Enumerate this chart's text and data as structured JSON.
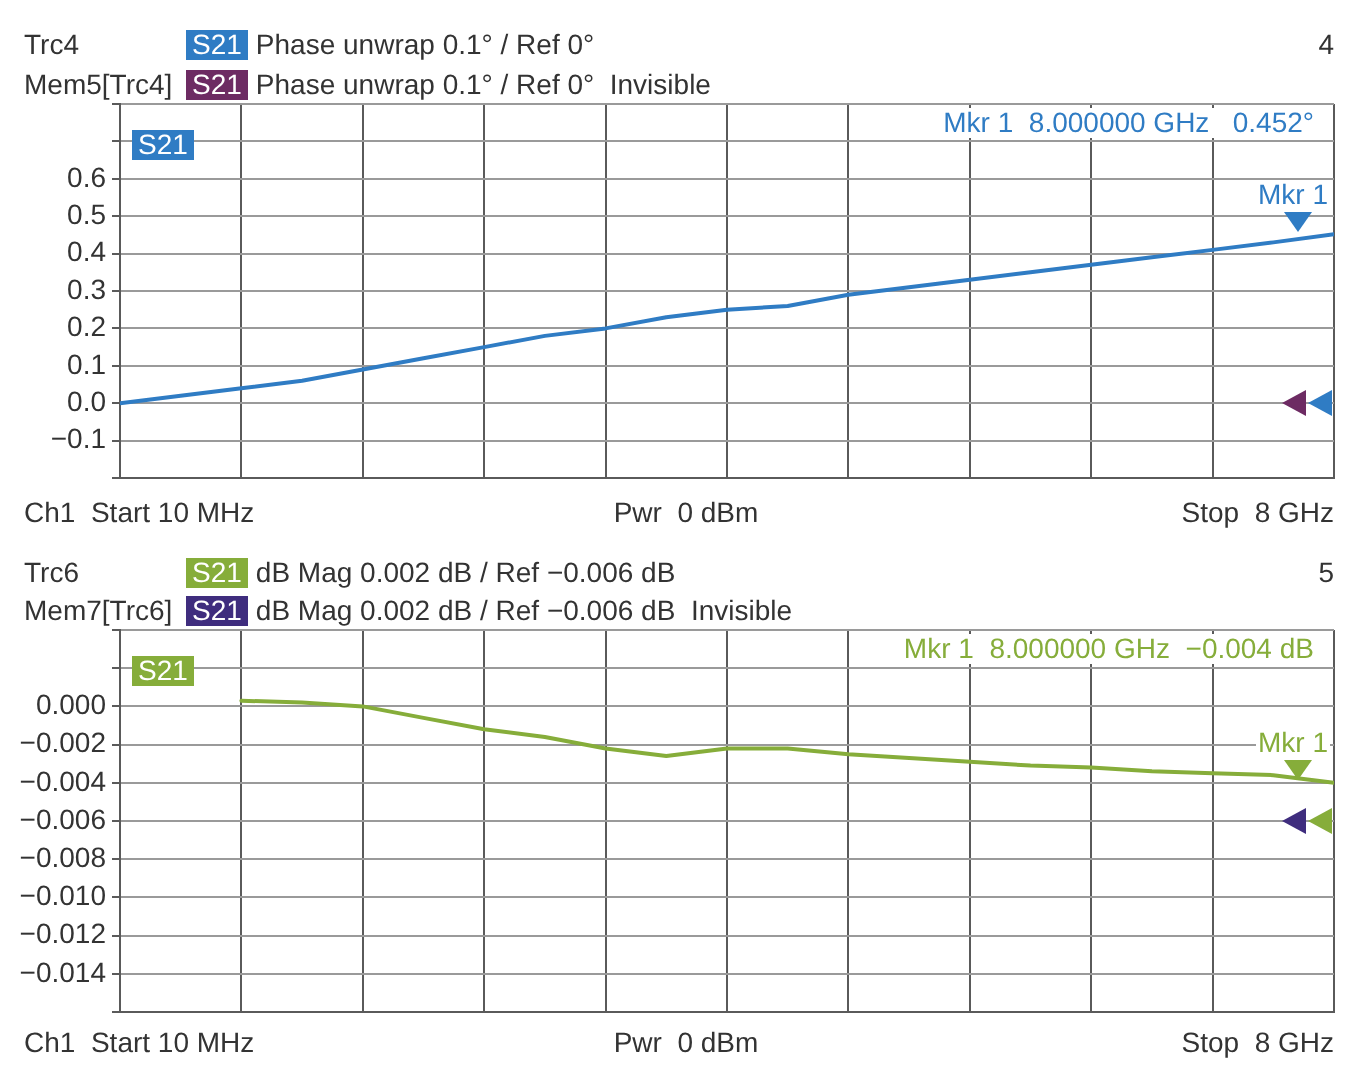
{
  "chart_data": [
    {
      "type": "line",
      "categories": [
        null,
        null,
        null,
        null,
        null,
        null,
        null,
        null,
        null,
        null,
        null,
        null,
        null,
        null,
        null,
        null,
        null,
        null,
        null,
        null,
        null
      ],
      "series": [
        {
          "name": "S21",
          "color": "#2f7cc4",
          "values": [
            0,
            0.02,
            0.04,
            0.06,
            0.09,
            0.12,
            0.15,
            0.18,
            0.2,
            0.23,
            0.25,
            0.26,
            0.29,
            0.31,
            0.33,
            0.35,
            0.37,
            0.39,
            0.41,
            0.43,
            0.452
          ]
        }
      ],
      "ylim": [
        -0.2,
        0.8
      ],
      "yticks": [
        {
          "value": -0.2,
          "label": null
        },
        {
          "value": -0.1,
          "label": "−0.1"
        },
        {
          "value": 0,
          "label": "0.0"
        },
        0.1,
        0.2,
        0.3,
        0.4,
        0.5,
        0.6,
        {
          "value": 0.7,
          "label": null
        },
        {
          "value": 0.8,
          "label": null
        }
      ],
      "grid": true,
      "legend": "top left",
      "tick_labels": "y",
      "annotations": [
        "Trc4",
        "S21",
        "Phase unwrap 0.1° / Ref 0°",
        "Mem5[Trc4]",
        "S21",
        "Phase unwrap 0.1° / Ref 0°  Invisible",
        "4",
        "Mkr 1  8.000000 GHz   0.452°",
        "Mkr 1",
        "Ch1  Start 10 MHz",
        "Pwr  0 dBm",
        "Stop  8 GHz"
      ]
    },
    {
      "type": "line",
      "categories": [
        null,
        null,
        null,
        null,
        null,
        null,
        null,
        null,
        null,
        null,
        null,
        null,
        null,
        null,
        null,
        null,
        null,
        null,
        null,
        null,
        null
      ],
      "series": [
        {
          "name": "S21",
          "color": "#86ad3a",
          "values": [
            null,
            null,
            0.0003,
            0.0002,
            0,
            -0.0006,
            -0.0012,
            -0.0016,
            -0.0022,
            -0.0026,
            -0.0022,
            -0.0022,
            -0.0025,
            -0.0027,
            -0.0029,
            -0.0031,
            -0.0032,
            -0.0034,
            -0.0035,
            -0.0036,
            -0.004
          ]
        }
      ],
      "ylim": [
        -0.016,
        0.004
      ],
      "yticks": [
        {
          "value": -0.016,
          "label": null
        },
        {
          "value": -0.014,
          "label": "−0.014"
        },
        {
          "value": -0.012,
          "label": "−0.012"
        },
        {
          "value": -0.01,
          "label": "−0.010"
        },
        {
          "value": -0.008,
          "label": "−0.008"
        },
        {
          "value": -0.006,
          "label": "−0.006"
        },
        {
          "value": -0.004,
          "label": "−0.004"
        },
        {
          "value": -0.002,
          "label": "−0.002"
        },
        {
          "value": 0,
          "label": "0.000"
        },
        {
          "value": 0.002,
          "label": null
        },
        {
          "value": 0.004,
          "label": null
        }
      ],
      "grid": true,
      "legend": "top left",
      "tick_labels": "y",
      "annotations": [
        "Trc6",
        "S21",
        "dB Mag 0.002 dB / Ref −0.006 dB",
        "Mem7[Trc6]",
        "S21",
        "dB Mag 0.002 dB / Ref −0.006 dB  Invisible",
        "5",
        "Mkr 1  8.000000 GHz  −0.004 dB",
        "Mkr 1",
        "Ch1  Start 10 MHz",
        "Pwr  0 dBm",
        "Stop  8 GHz"
      ]
    }
  ]
}
